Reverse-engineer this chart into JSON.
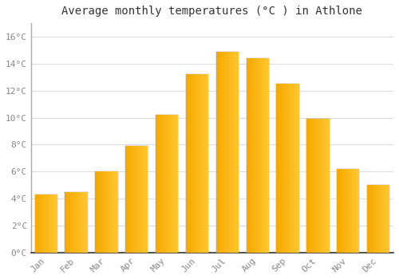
{
  "months": [
    "Jan",
    "Feb",
    "Mar",
    "Apr",
    "May",
    "Jun",
    "Jul",
    "Aug",
    "Sep",
    "Oct",
    "Nov",
    "Dec"
  ],
  "values": [
    4.3,
    4.5,
    6.0,
    7.9,
    10.2,
    13.2,
    14.9,
    14.4,
    12.5,
    9.9,
    6.2,
    5.0
  ],
  "bar_color_light": "#FFC830",
  "bar_color_dark": "#F5A800",
  "bar_edge_color": "#888888",
  "title": "Average monthly temperatures (°C ) in Athlone",
  "title_fontsize": 10,
  "title_font": "monospace",
  "tick_font": "monospace",
  "tick_fontsize": 8,
  "yticks": [
    0,
    2,
    4,
    6,
    8,
    10,
    12,
    14,
    16
  ],
  "ylim": [
    0,
    17
  ],
  "grid_color": "#dddddd",
  "background_color": "#ffffff",
  "plot_bg_color": "#ffffff",
  "bar_width": 0.75,
  "figsize": [
    5.0,
    3.5
  ],
  "dpi": 100
}
